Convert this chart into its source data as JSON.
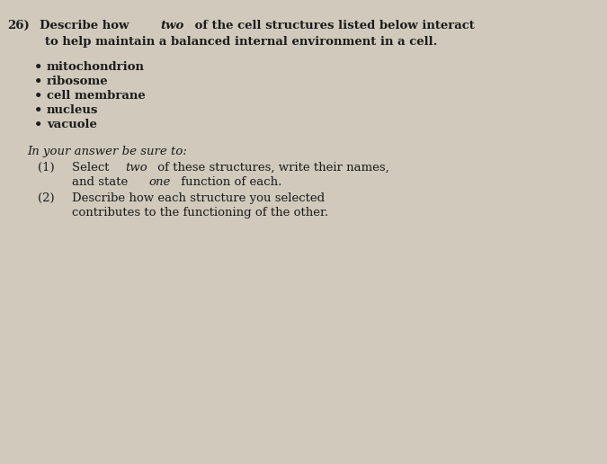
{
  "background_color": "#d0c9bc",
  "text_color": "#1c1c1c",
  "question_number": "26)",
  "bullet_items": [
    "mitochondrion",
    "ribosome",
    "cell membrane",
    "nucleus",
    "vacuole"
  ],
  "instruction_header": "In your answer be sure to:",
  "font_size": 9.5,
  "fig_width": 6.75,
  "fig_height": 5.16,
  "dpi": 100
}
